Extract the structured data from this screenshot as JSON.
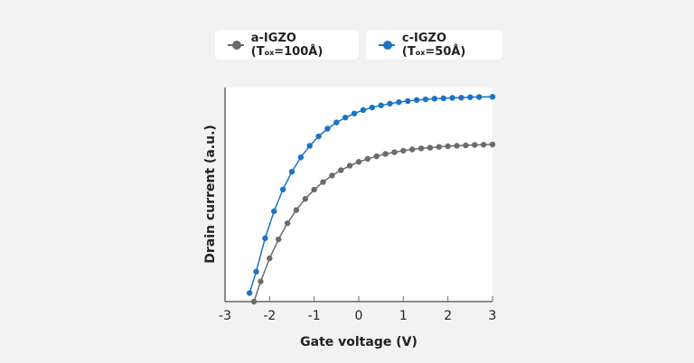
{
  "legend": [
    {
      "prefix": "a-IGZO (T",
      "sub": "ox",
      "suffix": "=100Å)",
      "color": "#6b6b6b"
    },
    {
      "prefix": "c-IGZO (T",
      "sub": "ox",
      "suffix": "=50Å)",
      "color": "#1a73c8"
    }
  ],
  "chart_data": {
    "type": "scatter",
    "xlabel": "Gate voltage (V)",
    "ylabel": "Drain current (a.u.)",
    "xlim": [
      -3,
      3
    ],
    "ylim": [
      0,
      1
    ],
    "xticks": [
      "-3",
      "-2",
      "-1",
      "0",
      "1",
      "2",
      "3"
    ],
    "yticks": [],
    "grid": false,
    "legend_position": "top",
    "series": [
      {
        "name": "a-IGZO (Tox=100Å)",
        "color": "#6b6b6b",
        "x": [
          -2.35,
          -2.2,
          -2.0,
          -1.8,
          -1.6,
          -1.4,
          -1.2,
          -1.0,
          -0.8,
          -0.6,
          -0.4,
          -0.2,
          0,
          0.2,
          0.4,
          0.6,
          0.8,
          1.0,
          1.2,
          1.4,
          1.6,
          1.8,
          2.0,
          2.2,
          2.4,
          2.6,
          2.8,
          3.0
        ],
        "y": [
          0,
          0.094,
          0.202,
          0.291,
          0.366,
          0.428,
          0.48,
          0.523,
          0.559,
          0.589,
          0.614,
          0.635,
          0.653,
          0.667,
          0.679,
          0.69,
          0.698,
          0.705,
          0.711,
          0.716,
          0.719,
          0.723,
          0.726,
          0.728,
          0.73,
          0.732,
          0.733,
          0.734
        ]
      },
      {
        "name": "c-IGZO (Tox=50Å)",
        "color": "#1a73c8",
        "x": [
          -2.45,
          -2.3,
          -2.1,
          -1.9,
          -1.7,
          -1.5,
          -1.3,
          -1.1,
          -0.9,
          -0.7,
          -0.5,
          -0.3,
          -0.1,
          0.1,
          0.3,
          0.5,
          0.7,
          0.9,
          1.1,
          1.3,
          1.5,
          1.7,
          1.9,
          2.1,
          2.3,
          2.5,
          2.7,
          3.0
        ],
        "y": [
          0.04,
          0.14,
          0.296,
          0.422,
          0.524,
          0.607,
          0.674,
          0.728,
          0.772,
          0.808,
          0.837,
          0.86,
          0.879,
          0.895,
          0.907,
          0.917,
          0.925,
          0.932,
          0.937,
          0.942,
          0.945,
          0.948,
          0.95,
          0.952,
          0.953,
          0.955,
          0.956,
          0.957
        ]
      }
    ]
  }
}
